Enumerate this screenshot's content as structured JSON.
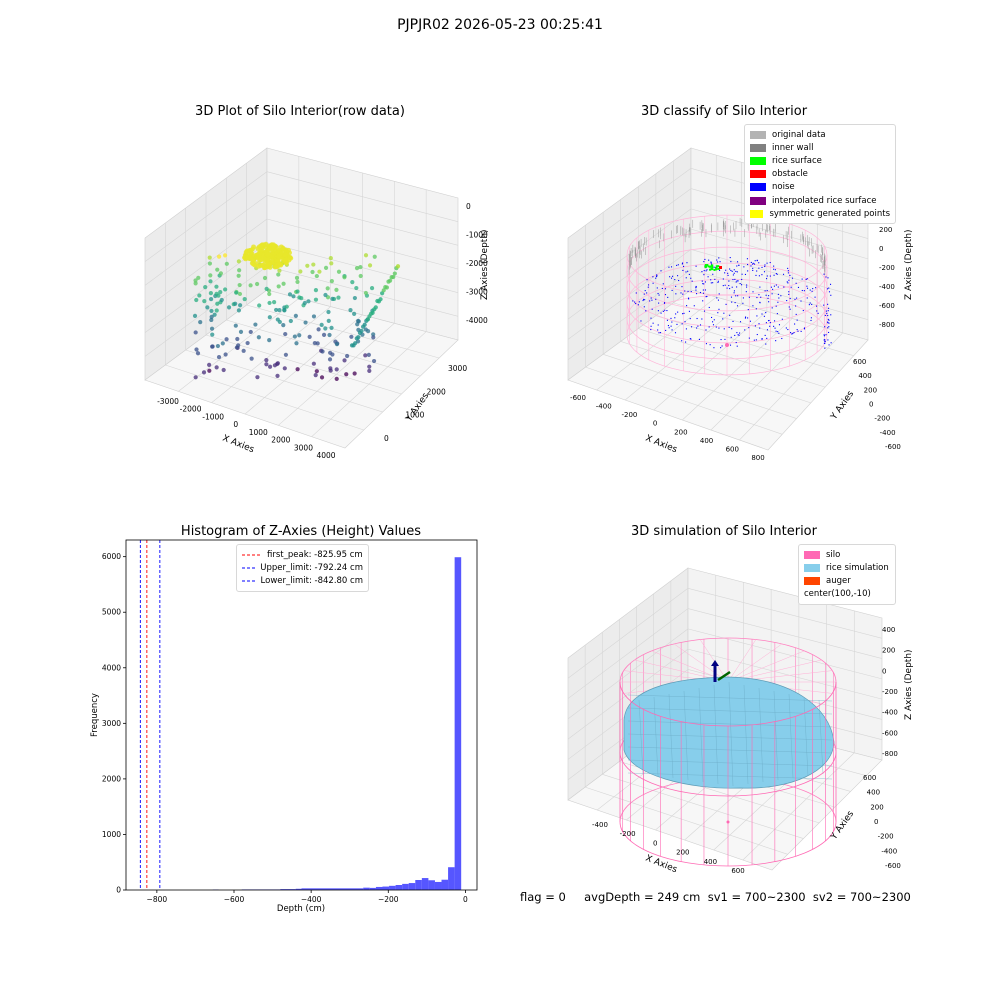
{
  "suptitle": "PJPJR02 2026-05-23 00:25:41",
  "footer": {
    "text": "flag = 0     avgDepth = 249 cm  sv1 = 700~2300  sv2 = 700~2300"
  },
  "chart_data": [
    {
      "type": "scatter",
      "title": "3D Plot of Silo Interior(row data)",
      "xlabel": "X Axies",
      "ylabel": "Y Axies",
      "zlabel": "Z Axies (Depth)",
      "x_ticks": [
        "-3000",
        "-2000",
        "-1000",
        "0",
        "1000",
        "2000",
        "3000",
        "4000"
      ],
      "y_ticks": [
        "0",
        "1000",
        "2000",
        "3000"
      ],
      "z_ticks": [
        "0",
        "-1000",
        "-2000",
        "-3000",
        "-4000"
      ],
      "colormap": "viridis",
      "cluster_color": "#e8e62a"
    },
    {
      "type": "scatter",
      "title": "3D classify of Silo Interior",
      "xlabel": "X Axies",
      "ylabel": "Y Axies",
      "zlabel": "Z Axies (Depth)",
      "x_ticks": [
        "-600",
        "-400",
        "-200",
        "0",
        "200",
        "400",
        "600",
        "800"
      ],
      "y_ticks": [
        "600",
        "400",
        "200",
        "0",
        "-200",
        "-400",
        "-600"
      ],
      "z_ticks": [
        "200",
        "0",
        "-200",
        "-400",
        "-600",
        "-800"
      ],
      "legend_placement": "top-right",
      "legend": [
        {
          "label": "original data",
          "color": "#b3b3b3"
        },
        {
          "label": "inner wall",
          "color": "#808080"
        },
        {
          "label": "rice surface",
          "color": "#00ff00"
        },
        {
          "label": "obstacle",
          "color": "#ff0000"
        },
        {
          "label": "noise",
          "color": "#0000ff"
        },
        {
          "label": "interpolated rice surface",
          "color": "#800080"
        },
        {
          "label": "symmetric generated points",
          "color": "#ffff00"
        }
      ]
    },
    {
      "type": "bar",
      "title": "Histogram of Z-Axies (Height) Values",
      "xlabel": "Depth (cm)",
      "ylabel": "Frequency",
      "xlim": [
        -880,
        30
      ],
      "ylim": [
        0,
        6300
      ],
      "x_ticks": [
        -800,
        -600,
        -400,
        -200,
        0
      ],
      "y_ticks": [
        0,
        1000,
        2000,
        3000,
        4000,
        5000,
        6000
      ],
      "bar_color": "#4d4dff",
      "bins": [
        {
          "x0": -655,
          "x1": -640,
          "count": 8
        },
        {
          "x0": -580,
          "x1": -480,
          "count": 10
        },
        {
          "x0": -480,
          "x1": -440,
          "count": 16
        },
        {
          "x0": -440,
          "x1": -425,
          "count": 22
        },
        {
          "x0": -425,
          "x1": -265,
          "count": 30
        },
        {
          "x0": -265,
          "x1": -248,
          "count": 42
        },
        {
          "x0": -248,
          "x1": -232,
          "count": 38
        },
        {
          "x0": -232,
          "x1": -215,
          "count": 55
        },
        {
          "x0": -215,
          "x1": -198,
          "count": 62
        },
        {
          "x0": -198,
          "x1": -181,
          "count": 75
        },
        {
          "x0": -181,
          "x1": -164,
          "count": 90
        },
        {
          "x0": -164,
          "x1": -147,
          "count": 110
        },
        {
          "x0": -147,
          "x1": -130,
          "count": 125
        },
        {
          "x0": -130,
          "x1": -113,
          "count": 180
        },
        {
          "x0": -113,
          "x1": -96,
          "count": 215
        },
        {
          "x0": -96,
          "x1": -79,
          "count": 175
        },
        {
          "x0": -79,
          "x1": -62,
          "count": 145
        },
        {
          "x0": -62,
          "x1": -45,
          "count": 185
        },
        {
          "x0": -45,
          "x1": -28,
          "count": 410
        },
        {
          "x0": -28,
          "x1": -11,
          "count": 5990
        }
      ],
      "vlines": [
        {
          "label": "first_peak: -825.95 cm",
          "x": -825.95,
          "color": "#ff0000"
        },
        {
          "label": "Upper_limit: -792.24 cm",
          "x": -792.24,
          "color": "#0000ff"
        },
        {
          "label": "Lower_limit: -842.80 cm",
          "x": -842.8,
          "color": "#0000ff"
        }
      ],
      "legend_placement": "top-center"
    },
    {
      "type": "scatter",
      "title": "3D simulation of Silo Interior",
      "xlabel": "X Axies",
      "ylabel": "Y Axies",
      "zlabel": "Z Axies (Depth)",
      "x_ticks": [
        "-400",
        "-200",
        "0",
        "200",
        "400",
        "600"
      ],
      "y_ticks": [
        "600",
        "400",
        "200",
        "0",
        "-200",
        "-400",
        "-600"
      ],
      "z_ticks": [
        "400",
        "200",
        "0",
        "-200",
        "-400",
        "-600",
        "-800"
      ],
      "legend_placement": "top-right",
      "legend": [
        {
          "label": "silo",
          "color": "#ff69b4"
        },
        {
          "label": "rice simulation",
          "color": "#87ceeb"
        },
        {
          "label": "auger",
          "color": "#ff4500"
        },
        {
          "label": "center(100,-10)",
          "color": "none"
        }
      ]
    }
  ]
}
